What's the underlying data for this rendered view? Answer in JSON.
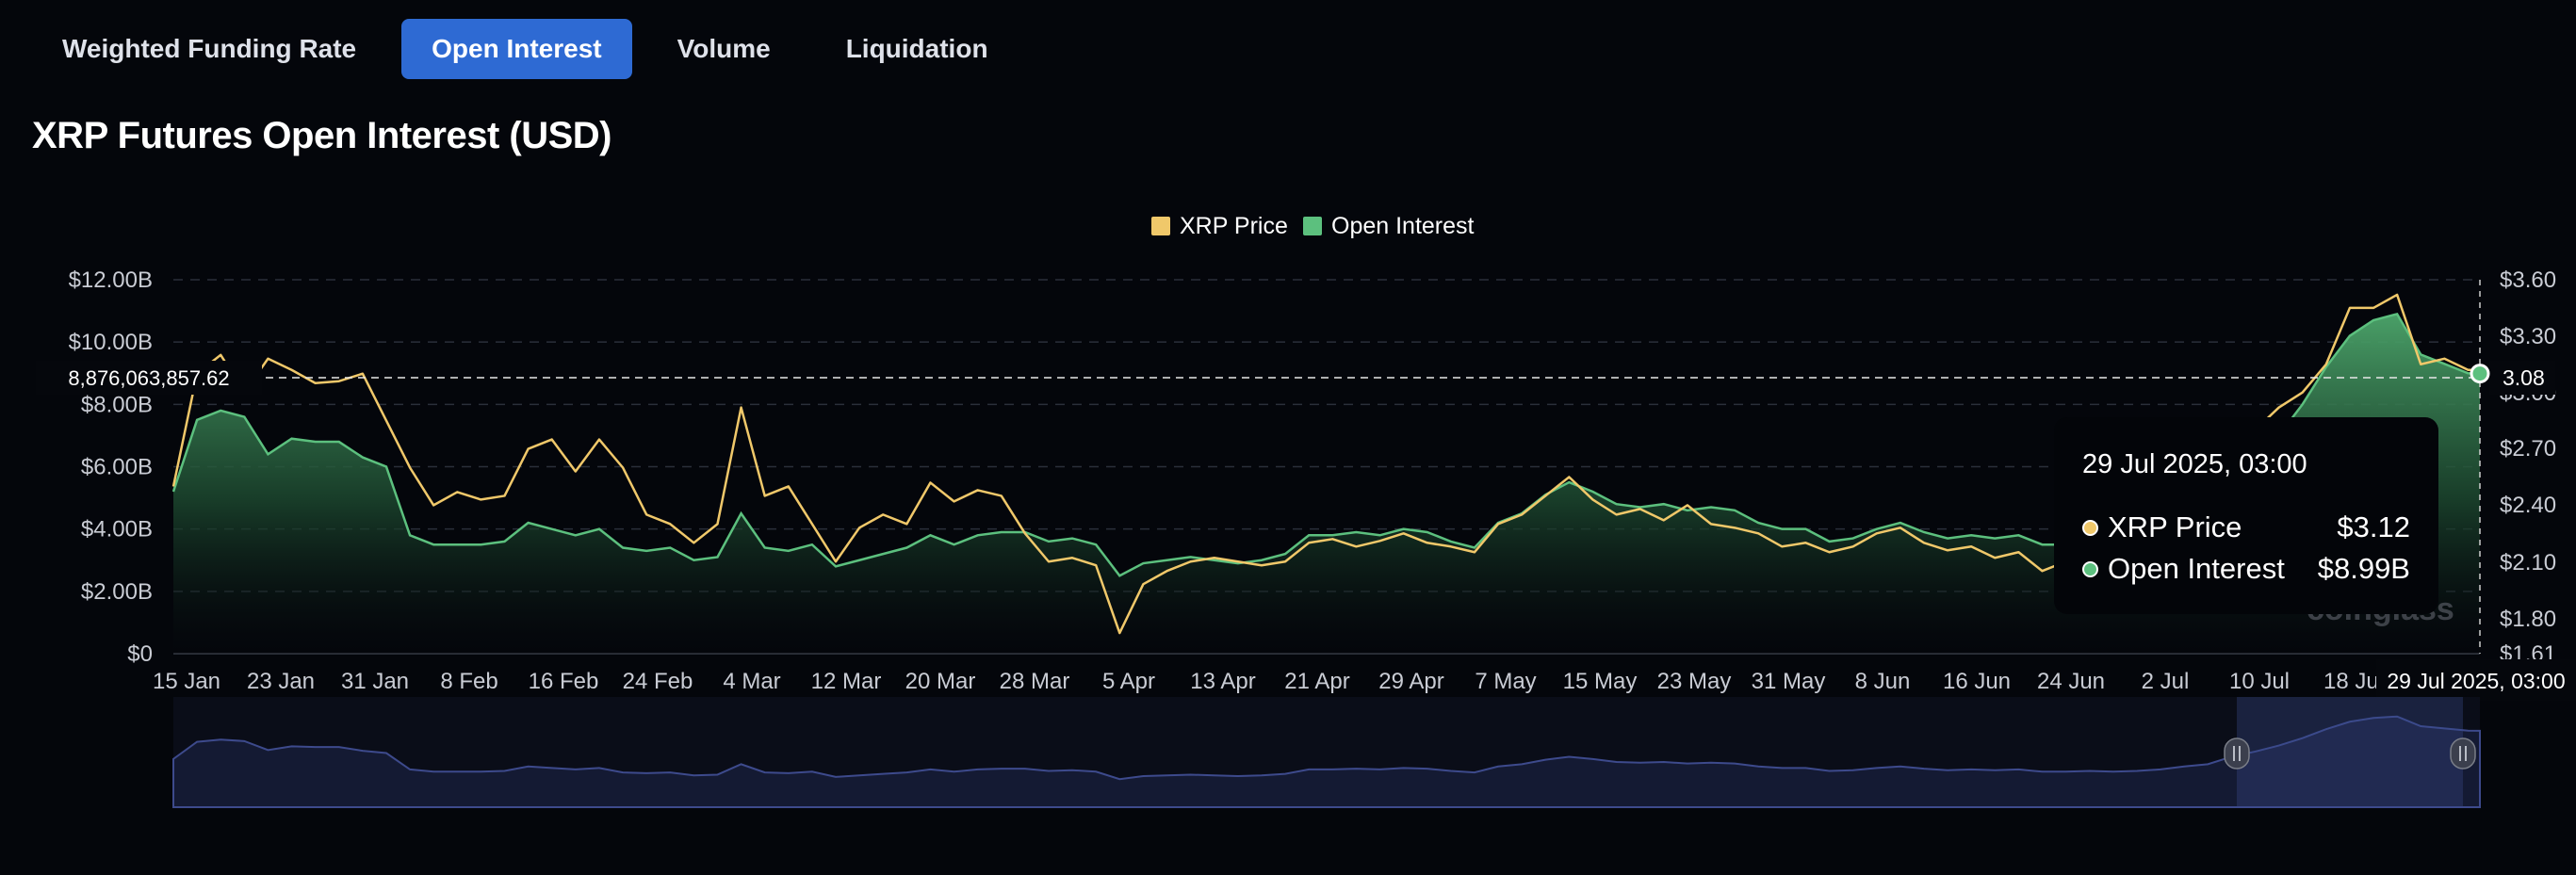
{
  "tabs": [
    {
      "label": "Weighted Funding Rate",
      "active": false
    },
    {
      "label": "Open Interest",
      "active": true
    },
    {
      "label": "Volume",
      "active": false
    },
    {
      "label": "Liquidation",
      "active": false
    }
  ],
  "title": "XRP Futures Open Interest (USD)",
  "colors": {
    "price": "#f0c86a",
    "oi": "#5cc07e",
    "oi_fill_top": "#3c8f5a",
    "navigator": "#3d4a8c",
    "tab_active": "#2e6ad3"
  },
  "crosshair": {
    "left_value": "8,876,063,857.62",
    "right_value": "3.08",
    "date": "29 Jul 2025, 03:00"
  },
  "tooltip": {
    "time": "29 Jul 2025, 03:00",
    "rows": [
      {
        "name": "XRP Price",
        "value": "$3.12",
        "color": "#f0c86a"
      },
      {
        "name": "Open Interest",
        "value": "$8.99B",
        "color": "#5cc07e"
      }
    ]
  },
  "watermark": "coinglass",
  "chart_data": {
    "type": "line",
    "title": "XRP Futures Open Interest (USD)",
    "legend": [
      "XRP Price",
      "Open Interest"
    ],
    "legend_position": "top-center",
    "grid": true,
    "x_labels": [
      "15 Jan",
      "23 Jan",
      "31 Jan",
      "8 Feb",
      "16 Feb",
      "24 Feb",
      "4 Mar",
      "12 Mar",
      "20 Mar",
      "28 Mar",
      "5 Apr",
      "13 Apr",
      "21 Apr",
      "29 Apr",
      "7 May",
      "15 May",
      "23 May",
      "31 May",
      "8 Jun",
      "16 Jun",
      "24 Jun",
      "2 Jul",
      "10 Jul",
      "18 Jul"
    ],
    "y_left_ticks": [
      "$0",
      "$2.00B",
      "$4.00B",
      "$6.00B",
      "$8.00B",
      "$10.00B",
      "$12.00B"
    ],
    "y_right_ticks": [
      "$1.61",
      "$1.80",
      "$2.10",
      "$2.40",
      "$2.70",
      "$3.00",
      "$3.30",
      "$3.60"
    ],
    "y_left_range": [
      0,
      12
    ],
    "y_left_unit": "B",
    "y_right_range": [
      1.61,
      3.6
    ],
    "series": [
      {
        "name": "Open Interest",
        "axis": "left",
        "points": [
          [
            "15 Jan",
            5.2
          ],
          [
            "17 Jan",
            7.5
          ],
          [
            "19 Jan",
            7.8
          ],
          [
            "21 Jan",
            7.6
          ],
          [
            "23 Jan",
            6.4
          ],
          [
            "25 Jan",
            6.9
          ],
          [
            "27 Jan",
            6.8
          ],
          [
            "29 Jan",
            6.8
          ],
          [
            "31 Jan",
            6.3
          ],
          [
            "2 Feb",
            6.0
          ],
          [
            "4 Feb",
            3.8
          ],
          [
            "6 Feb",
            3.5
          ],
          [
            "8 Feb",
            3.5
          ],
          [
            "10 Feb",
            3.5
          ],
          [
            "12 Feb",
            3.6
          ],
          [
            "14 Feb",
            4.2
          ],
          [
            "16 Feb",
            4.0
          ],
          [
            "18 Feb",
            3.8
          ],
          [
            "20 Feb",
            4.0
          ],
          [
            "22 Feb",
            3.4
          ],
          [
            "24 Feb",
            3.3
          ],
          [
            "26 Feb",
            3.4
          ],
          [
            "28 Feb",
            3.0
          ],
          [
            "2 Mar",
            3.1
          ],
          [
            "4 Mar",
            4.5
          ],
          [
            "6 Mar",
            3.4
          ],
          [
            "8 Mar",
            3.3
          ],
          [
            "10 Mar",
            3.5
          ],
          [
            "12 Mar",
            2.8
          ],
          [
            "14 Mar",
            3.0
          ],
          [
            "16 Mar",
            3.2
          ],
          [
            "18 Mar",
            3.4
          ],
          [
            "20 Mar",
            3.8
          ],
          [
            "22 Mar",
            3.5
          ],
          [
            "24 Mar",
            3.8
          ],
          [
            "26 Mar",
            3.9
          ],
          [
            "28 Mar",
            3.9
          ],
          [
            "30 Mar",
            3.6
          ],
          [
            "1 Apr",
            3.7
          ],
          [
            "3 Apr",
            3.5
          ],
          [
            "5 Apr",
            2.5
          ],
          [
            "7 Apr",
            2.9
          ],
          [
            "9 Apr",
            3.0
          ],
          [
            "11 Apr",
            3.1
          ],
          [
            "13 Apr",
            3.0
          ],
          [
            "15 Apr",
            2.9
          ],
          [
            "17 Apr",
            3.0
          ],
          [
            "19 Apr",
            3.2
          ],
          [
            "21 Apr",
            3.8
          ],
          [
            "23 Apr",
            3.8
          ],
          [
            "25 Apr",
            3.9
          ],
          [
            "27 Apr",
            3.8
          ],
          [
            "29 Apr",
            4.0
          ],
          [
            "1 May",
            3.9
          ],
          [
            "3 May",
            3.6
          ],
          [
            "5 May",
            3.4
          ],
          [
            "7 May",
            4.2
          ],
          [
            "9 May",
            4.5
          ],
          [
            "11 May",
            5.1
          ],
          [
            "13 May",
            5.5
          ],
          [
            "15 May",
            5.2
          ],
          [
            "17 May",
            4.8
          ],
          [
            "19 May",
            4.7
          ],
          [
            "21 May",
            4.8
          ],
          [
            "23 May",
            4.6
          ],
          [
            "25 May",
            4.7
          ],
          [
            "27 May",
            4.6
          ],
          [
            "29 May",
            4.2
          ],
          [
            "31 May",
            4.0
          ],
          [
            "2 Jun",
            4.0
          ],
          [
            "4 Jun",
            3.6
          ],
          [
            "6 Jun",
            3.7
          ],
          [
            "8 Jun",
            4.0
          ],
          [
            "10 Jun",
            4.2
          ],
          [
            "12 Jun",
            3.9
          ],
          [
            "14 Jun",
            3.7
          ],
          [
            "16 Jun",
            3.8
          ],
          [
            "18 Jun",
            3.7
          ],
          [
            "20 Jun",
            3.8
          ],
          [
            "22 Jun",
            3.5
          ],
          [
            "24 Jun",
            3.5
          ],
          [
            "26 Jun",
            3.6
          ],
          [
            "28 Jun",
            3.5
          ],
          [
            "30 Jun",
            3.6
          ],
          [
            "2 Jul",
            3.8
          ],
          [
            "4 Jul",
            4.2
          ],
          [
            "6 Jul",
            4.5
          ],
          [
            "8 Jul",
            5.5
          ],
          [
            "10 Jul",
            6.2
          ],
          [
            "12 Jul",
            7.0
          ],
          [
            "14 Jul",
            8.0
          ],
          [
            "16 Jul",
            9.2
          ],
          [
            "18 Jul",
            10.2
          ],
          [
            "20 Jul",
            10.7
          ],
          [
            "22 Jul",
            10.9
          ],
          [
            "24 Jul",
            9.6
          ],
          [
            "26 Jul",
            9.3
          ],
          [
            "28 Jul",
            9.0
          ],
          [
            "29 Jul",
            8.99
          ]
        ]
      },
      {
        "name": "XRP Price",
        "axis": "right",
        "points": [
          [
            "15 Jan",
            2.5
          ],
          [
            "17 Jan",
            3.1
          ],
          [
            "19 Jan",
            3.2
          ],
          [
            "21 Jan",
            3.0
          ],
          [
            "23 Jan",
            3.18
          ],
          [
            "25 Jan",
            3.12
          ],
          [
            "27 Jan",
            3.05
          ],
          [
            "29 Jan",
            3.06
          ],
          [
            "31 Jan",
            3.1
          ],
          [
            "2 Feb",
            2.85
          ],
          [
            "4 Feb",
            2.6
          ],
          [
            "6 Feb",
            2.4
          ],
          [
            "8 Feb",
            2.47
          ],
          [
            "10 Feb",
            2.43
          ],
          [
            "12 Feb",
            2.45
          ],
          [
            "14 Feb",
            2.7
          ],
          [
            "16 Feb",
            2.75
          ],
          [
            "18 Feb",
            2.58
          ],
          [
            "20 Feb",
            2.75
          ],
          [
            "22 Feb",
            2.6
          ],
          [
            "24 Feb",
            2.35
          ],
          [
            "26 Feb",
            2.3
          ],
          [
            "28 Feb",
            2.2
          ],
          [
            "2 Mar",
            2.3
          ],
          [
            "4 Mar",
            2.92
          ],
          [
            "6 Mar",
            2.45
          ],
          [
            "8 Mar",
            2.5
          ],
          [
            "10 Mar",
            2.3
          ],
          [
            "12 Mar",
            2.1
          ],
          [
            "14 Mar",
            2.28
          ],
          [
            "16 Mar",
            2.35
          ],
          [
            "18 Mar",
            2.3
          ],
          [
            "20 Mar",
            2.52
          ],
          [
            "22 Mar",
            2.42
          ],
          [
            "24 Mar",
            2.48
          ],
          [
            "26 Mar",
            2.45
          ],
          [
            "28 Mar",
            2.25
          ],
          [
            "30 Mar",
            2.1
          ],
          [
            "1 Apr",
            2.12
          ],
          [
            "3 Apr",
            2.08
          ],
          [
            "5 Apr",
            1.72
          ],
          [
            "7 Apr",
            1.98
          ],
          [
            "9 Apr",
            2.05
          ],
          [
            "11 Apr",
            2.1
          ],
          [
            "13 Apr",
            2.12
          ],
          [
            "15 Apr",
            2.1
          ],
          [
            "17 Apr",
            2.08
          ],
          [
            "19 Apr",
            2.1
          ],
          [
            "21 Apr",
            2.2
          ],
          [
            "23 Apr",
            2.22
          ],
          [
            "25 Apr",
            2.18
          ],
          [
            "27 Apr",
            2.21
          ],
          [
            "29 Apr",
            2.25
          ],
          [
            "1 May",
            2.2
          ],
          [
            "3 May",
            2.18
          ],
          [
            "5 May",
            2.15
          ],
          [
            "7 May",
            2.3
          ],
          [
            "9 May",
            2.35
          ],
          [
            "11 May",
            2.45
          ],
          [
            "13 May",
            2.55
          ],
          [
            "15 May",
            2.43
          ],
          [
            "17 May",
            2.35
          ],
          [
            "19 May",
            2.38
          ],
          [
            "21 May",
            2.32
          ],
          [
            "23 May",
            2.4
          ],
          [
            "25 May",
            2.3
          ],
          [
            "27 May",
            2.28
          ],
          [
            "29 May",
            2.25
          ],
          [
            "31 May",
            2.18
          ],
          [
            "2 Jun",
            2.2
          ],
          [
            "4 Jun",
            2.15
          ],
          [
            "6 Jun",
            2.18
          ],
          [
            "8 Jun",
            2.25
          ],
          [
            "10 Jun",
            2.28
          ],
          [
            "12 Jun",
            2.2
          ],
          [
            "14 Jun",
            2.16
          ],
          [
            "16 Jun",
            2.18
          ],
          [
            "18 Jun",
            2.12
          ],
          [
            "20 Jun",
            2.15
          ],
          [
            "22 Jun",
            2.05
          ],
          [
            "24 Jun",
            2.1
          ],
          [
            "26 Jun",
            2.08
          ],
          [
            "28 Jun",
            2.12
          ],
          [
            "30 Jun",
            2.14
          ],
          [
            "2 Jul",
            2.2
          ],
          [
            "4 Jul",
            2.28
          ],
          [
            "6 Jul",
            2.35
          ],
          [
            "8 Jul",
            2.55
          ],
          [
            "10 Jul",
            2.8
          ],
          [
            "12 Jul",
            2.92
          ],
          [
            "14 Jul",
            3.0
          ],
          [
            "16 Jul",
            3.15
          ],
          [
            "18 Jul",
            3.45
          ],
          [
            "20 Jul",
            3.45
          ],
          [
            "22 Jul",
            3.52
          ],
          [
            "24 Jul",
            3.15
          ],
          [
            "26 Jul",
            3.18
          ],
          [
            "28 Jul",
            3.12
          ],
          [
            "29 Jul",
            3.12
          ]
        ]
      }
    ]
  }
}
